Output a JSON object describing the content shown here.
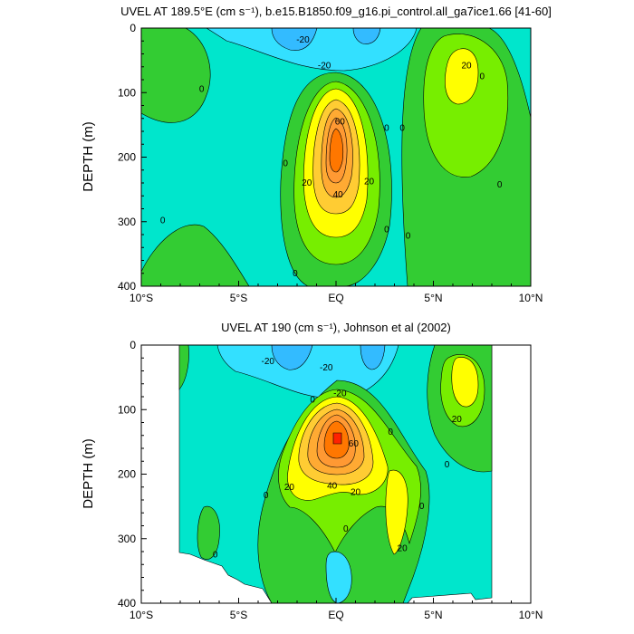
{
  "chart_data": [
    {
      "type": "contour",
      "title": "UVEL AT 189.5°E (cm s⁻¹), b.e15.B1850.f09_g16.pi_control.all_ga7ice1.66 [41-60]",
      "ylabel": "DEPTH (m)",
      "xlabel": "",
      "x_ticks": [
        "10°S",
        "5°S",
        "EQ",
        "5°N",
        "10°N"
      ],
      "y_ticks": [
        "0",
        "100",
        "200",
        "300",
        "400"
      ],
      "xlim": [
        -10,
        10
      ],
      "ylim": [
        400,
        0
      ],
      "y_reversed": true,
      "levels": [
        -30,
        -20,
        -10,
        0,
        10,
        20,
        30,
        40,
        50,
        60,
        70,
        80
      ],
      "contour_labels": [
        {
          "text": "-20",
          "x": -1.7,
          "y": 18
        },
        {
          "text": "-20",
          "x": -0.6,
          "y": 58
        },
        {
          "text": "20",
          "x": 6.7,
          "y": 58
        },
        {
          "text": "0",
          "x": 7.5,
          "y": 75
        },
        {
          "text": "0",
          "x": -6.9,
          "y": 95
        },
        {
          "text": "60",
          "x": 0.2,
          "y": 145
        },
        {
          "text": "0",
          "x": 2.6,
          "y": 155
        },
        {
          "text": "0",
          "x": 3.4,
          "y": 155
        },
        {
          "text": "0",
          "x": -2.6,
          "y": 210
        },
        {
          "text": "20",
          "x": -1.5,
          "y": 240
        },
        {
          "text": "40",
          "x": 0.1,
          "y": 258
        },
        {
          "text": "20",
          "x": 1.7,
          "y": 238
        },
        {
          "text": "0",
          "x": 8.4,
          "y": 243
        },
        {
          "text": "0",
          "x": -8.9,
          "y": 298
        },
        {
          "text": "0",
          "x": 2.6,
          "y": 312
        },
        {
          "text": "0",
          "x": 3.7,
          "y": 322
        },
        {
          "text": "0",
          "x": -2.1,
          "y": 380
        }
      ]
    },
    {
      "type": "contour",
      "title": "UVEL AT 190 (cm s⁻¹), Johnson et al (2002)",
      "ylabel": "DEPTH (m)",
      "xlabel": "",
      "x_ticks": [
        "10°S",
        "5°S",
        "EQ",
        "5°N",
        "10°N"
      ],
      "y_ticks": [
        "0",
        "100",
        "200",
        "300",
        "400"
      ],
      "xlim": [
        -10,
        10
      ],
      "ylim": [
        400,
        0
      ],
      "y_reversed": true,
      "data_extent_x": [
        -8.2,
        8.2
      ],
      "levels": [
        -30,
        -20,
        -10,
        0,
        10,
        20,
        30,
        40,
        50,
        60,
        70,
        80
      ],
      "contour_labels": [
        {
          "text": "-20",
          "x": -3.5,
          "y": 25
        },
        {
          "text": "-20",
          "x": -0.5,
          "y": 35
        },
        {
          "text": "-20",
          "x": 0.2,
          "y": 75
        },
        {
          "text": "0",
          "x": -1.2,
          "y": 85
        },
        {
          "text": "0",
          "x": 2.8,
          "y": 135
        },
        {
          "text": "20",
          "x": 6.2,
          "y": 115
        },
        {
          "text": "60",
          "x": 0.9,
          "y": 153
        },
        {
          "text": "0",
          "x": 5.7,
          "y": 185
        },
        {
          "text": "20",
          "x": -2.4,
          "y": 220
        },
        {
          "text": "40",
          "x": -0.2,
          "y": 218
        },
        {
          "text": "20",
          "x": 1.0,
          "y": 228
        },
        {
          "text": "0",
          "x": -3.6,
          "y": 233
        },
        {
          "text": "0",
          "x": 4.4,
          "y": 250
        },
        {
          "text": "0",
          "x": 0.5,
          "y": 285
        },
        {
          "text": "20",
          "x": 3.4,
          "y": 315
        },
        {
          "text": "0",
          "x": -6.2,
          "y": 325
        }
      ]
    }
  ],
  "colors": {
    "lt_neg30": "#1e90ff",
    "neg30_neg20": "#33bbff",
    "neg20_neg10": "#33e0ff",
    "neg10_0": "#00e6cc",
    "0_10": "#33cc33",
    "10_20": "#77ee00",
    "20_30": "#ffff00",
    "30_40": "#ffcc33",
    "40_50": "#ffaa33",
    "50_60": "#ff9933",
    "60_70": "#ff7700",
    "gt_70": "#ff2200"
  }
}
